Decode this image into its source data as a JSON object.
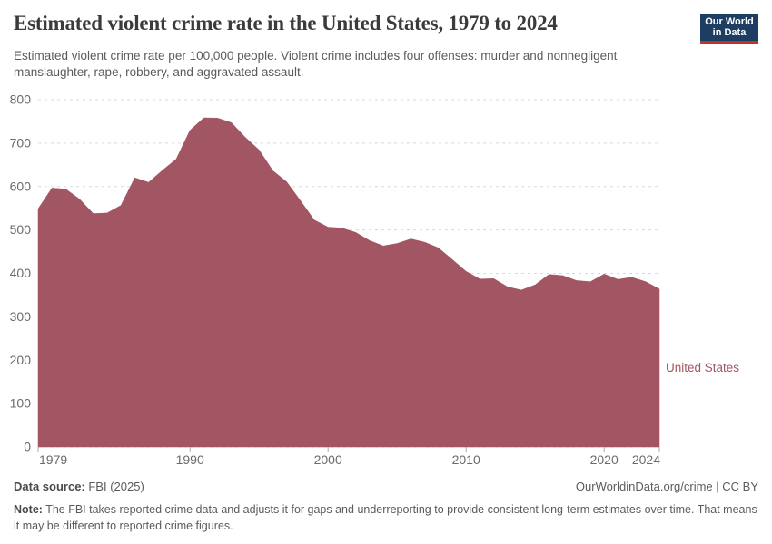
{
  "header": {
    "title": "Estimated violent crime rate in the United States, 1979 to 2024",
    "subtitle": "Estimated violent crime rate per 100,000 people. Violent crime includes four offenses: murder and nonnegligent manslaughter, rape, robbery, and aggravated assault.",
    "logo": {
      "line1": "Our World",
      "line2": "in Data",
      "bg_color": "#1d3d63",
      "bar_color": "#bb352d"
    }
  },
  "chart_data": {
    "type": "area",
    "title": "Estimated violent crime rate in the United States, 1979 to 2024",
    "xlabel": "",
    "ylabel": "Estimated violent crime rate per 100,000 people",
    "xlim": [
      1979,
      2024
    ],
    "ylim": [
      0,
      800
    ],
    "x_ticks": [
      1979,
      1990,
      2000,
      2010,
      2020,
      2024
    ],
    "y_ticks": [
      0,
      100,
      200,
      300,
      400,
      500,
      600,
      700,
      800
    ],
    "grid": "horizontal-dashed",
    "legend_position": "right-of-area-end",
    "entity_label": "United States",
    "series": [
      {
        "name": "United States",
        "color": "#a25562",
        "x": [
          1979,
          1980,
          1981,
          1982,
          1983,
          1984,
          1985,
          1986,
          1987,
          1988,
          1989,
          1990,
          1991,
          1992,
          1993,
          1994,
          1995,
          1996,
          1997,
          1998,
          1999,
          2000,
          2001,
          2002,
          2003,
          2004,
          2005,
          2006,
          2007,
          2008,
          2009,
          2010,
          2011,
          2012,
          2013,
          2014,
          2015,
          2016,
          2017,
          2018,
          2019,
          2020,
          2021,
          2022,
          2023,
          2024
        ],
        "values": [
          548.9,
          596.6,
          594.3,
          571.1,
          537.7,
          539.2,
          556.6,
          620.1,
          609.7,
          637.2,
          663.1,
          729.6,
          758.2,
          757.7,
          747.1,
          713.6,
          684.5,
          636.6,
          611.0,
          567.6,
          523.0,
          506.5,
          504.5,
          494.4,
          475.8,
          463.2,
          469.0,
          479.3,
          471.8,
          458.6,
          431.9,
          404.5,
          387.1,
          387.8,
          369.1,
          361.6,
          373.7,
          397.5,
          394.9,
          383.4,
          380.8,
          398.5,
          386.3,
          391.0,
          381.0,
          364.0
        ]
      }
    ],
    "colors": {
      "gridline": "#d9d9d9",
      "tick_label": "#6b6b6b",
      "tick_mark": "#ababab"
    }
  },
  "footer": {
    "datasource_label": "Data source:",
    "datasource_value": " FBI (2025)",
    "attribution": "OurWorldinData.org/crime | CC BY",
    "note_label": "Note:",
    "note_text": " The FBI takes reported crime data and adjusts it for gaps and underreporting to provide consistent long-term estimates over time. That means it may be different to reported crime figures."
  }
}
